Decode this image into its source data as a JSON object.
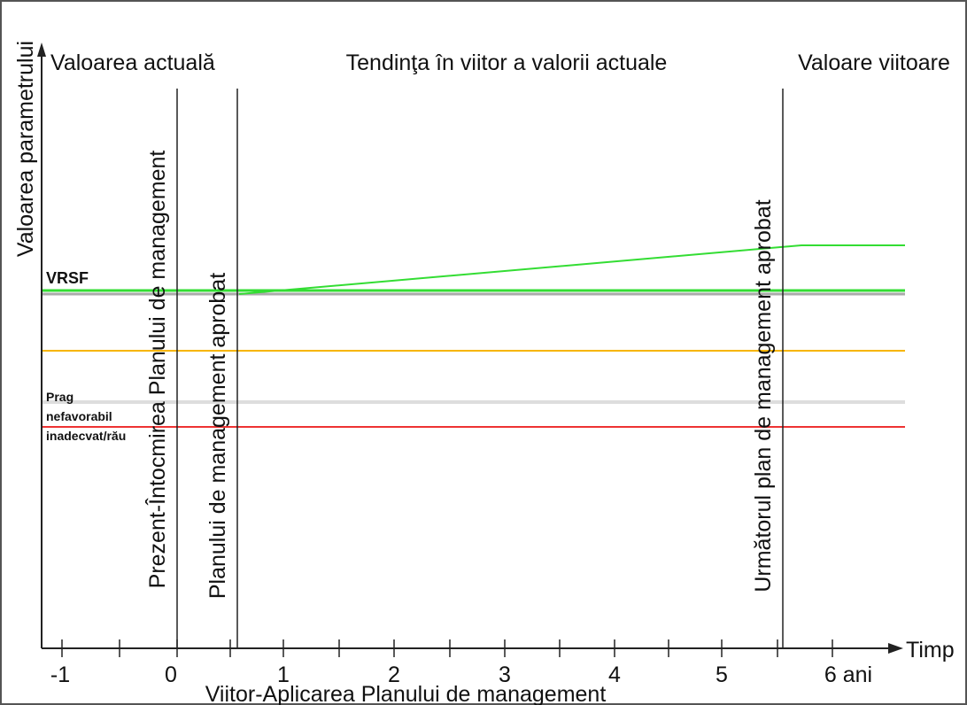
{
  "y_axis_label": "Valoarea parametrului",
  "x_axis_label": "Timp",
  "headers": {
    "current": "Valoarea actuală",
    "trend": "Tendinţa în viitor a valorii actuale",
    "future": "Valoare viitoare"
  },
  "vertical_labels": {
    "present": "Prezent-Întocmirea Planului de management",
    "approved": "Planului de management aprobat",
    "next_plan": "Următorul plan de management aprobat"
  },
  "bottom_label": "Viitor-Aplicarea Planului de management",
  "ticks": [
    "-1",
    "0",
    "1",
    "2",
    "3",
    "4",
    "5",
    "6 ani"
  ],
  "levels": {
    "vrsf": "VRSF",
    "threshold_line1": "Prag",
    "threshold_line2": "nefavorabil",
    "threshold_line3": "inadecvat/rău"
  },
  "colors": {
    "green": "#33dd33",
    "gray": "#aaaaaa",
    "orange": "#f7b500",
    "light_gray": "#dddddd",
    "red": "#ee3333",
    "line": "#222222"
  }
}
